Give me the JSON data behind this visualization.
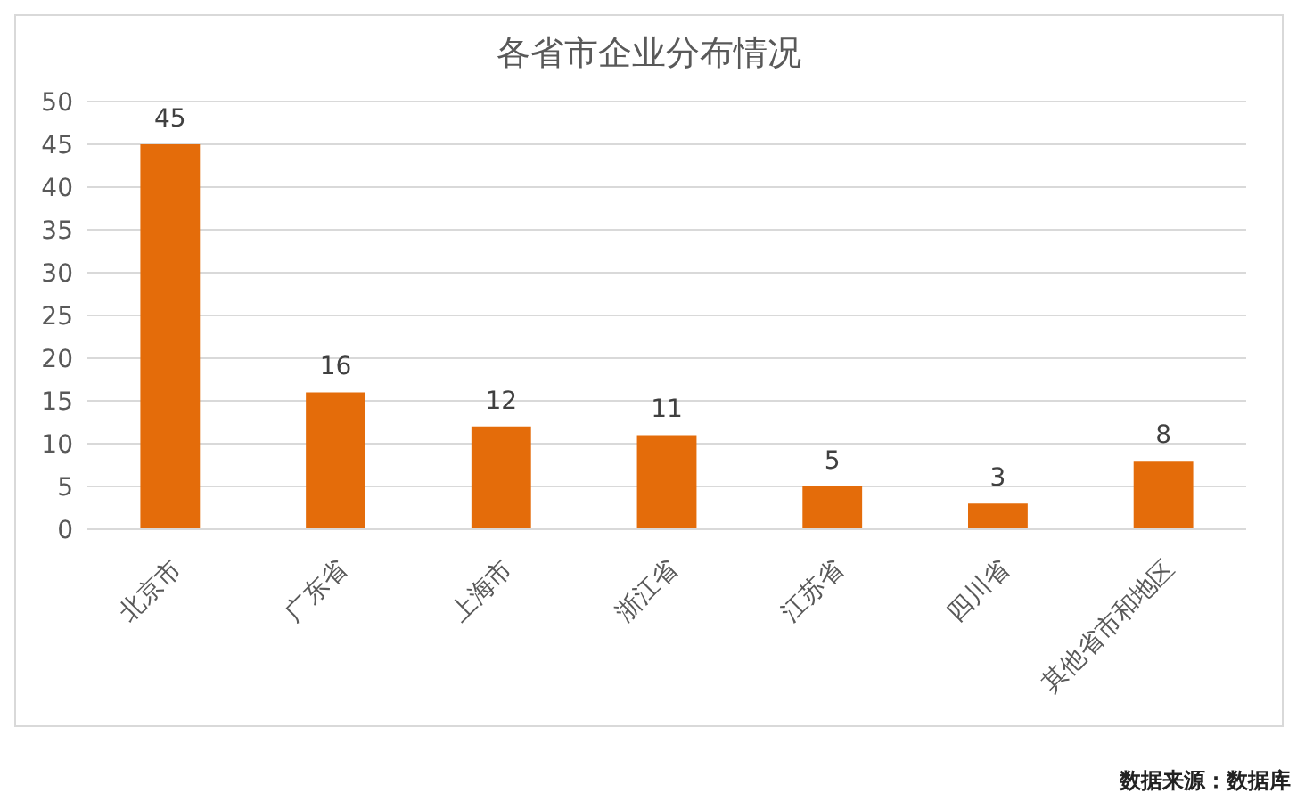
{
  "chart_data": {
    "type": "bar",
    "title": "各省市企业分布情况",
    "categories": [
      "北京市",
      "广东省",
      "上海市",
      "浙江省",
      "江苏省",
      "四川省",
      "其他省市和地区"
    ],
    "values": [
      45,
      16,
      12,
      11,
      5,
      3,
      8
    ],
    "color": "#e46c0a",
    "ylim": [
      0,
      50
    ],
    "yticks": [
      0,
      5,
      10,
      15,
      20,
      25,
      30,
      35,
      40,
      45,
      50
    ],
    "grid": "y",
    "data_labels": true,
    "annotations": [
      "数据来源：数据库"
    ]
  }
}
